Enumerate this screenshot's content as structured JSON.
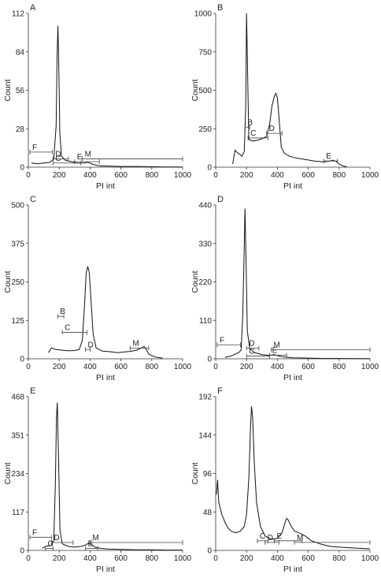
{
  "chart_data": [
    {
      "type": "line",
      "panel": "A",
      "xlabel": "PI int",
      "ylabel": "Count",
      "xlim": [
        0,
        1000
      ],
      "ylim": [
        0,
        112
      ],
      "xticks": [
        "0",
        "200",
        "400",
        "600",
        "800",
        "1000"
      ],
      "yticks": [
        "0",
        "28",
        "56",
        "84",
        "112"
      ],
      "series": [
        {
          "values": [
            [
              20,
              3
            ],
            [
              60,
              2.5
            ],
            [
              100,
              3
            ],
            [
              140,
              3.5
            ],
            [
              165,
              6
            ],
            [
              180,
              30
            ],
            [
              186,
              80
            ],
            [
              192,
              103
            ],
            [
              198,
              70
            ],
            [
              204,
              25
            ],
            [
              215,
              8
            ],
            [
              240,
              5
            ],
            [
              280,
              4
            ],
            [
              320,
              3
            ],
            [
              360,
              3
            ],
            [
              385,
              3.5
            ],
            [
              400,
              3
            ],
            [
              420,
              2
            ],
            [
              460,
              1
            ],
            [
              520,
              0.8
            ],
            [
              600,
              0.5
            ],
            [
              700,
              0.5
            ],
            [
              800,
              0.3
            ],
            [
              900,
              0.2
            ],
            [
              1000,
              0.2
            ]
          ]
        }
      ],
      "gates": [
        {
          "label": "F",
          "x1": 10,
          "x2": 155,
          "y": 11
        },
        {
          "label": "D",
          "x1": 160,
          "x2": 260,
          "y": 6
        },
        {
          "label": "C",
          "x1": 160,
          "x2": 340,
          "y": 3
        },
        {
          "label": "E",
          "x1": 300,
          "x2": 460,
          "y": 4
        },
        {
          "label": "M",
          "x1": 350,
          "x2": 1000,
          "y": 6
        }
      ]
    },
    {
      "type": "line",
      "panel": "B",
      "xlabel": "PI int",
      "ylabel": "Count",
      "xlim": [
        0,
        1000
      ],
      "ylim": [
        0,
        1000
      ],
      "xticks": [
        "0",
        "200",
        "400",
        "600",
        "800",
        "1000"
      ],
      "yticks": [
        "0",
        "250",
        "500",
        "750",
        "1000"
      ],
      "series": [
        {
          "values": [
            [
              110,
              20
            ],
            [
              125,
              110
            ],
            [
              140,
              95
            ],
            [
              155,
              85
            ],
            [
              170,
              70
            ],
            [
              185,
              100
            ],
            [
              195,
              400
            ],
            [
              200,
              1000
            ],
            [
              207,
              600
            ],
            [
              215,
              180
            ],
            [
              240,
              170
            ],
            [
              270,
              175
            ],
            [
              300,
              185
            ],
            [
              330,
              200
            ],
            [
              350,
              280
            ],
            [
              365,
              400
            ],
            [
              380,
              460
            ],
            [
              390,
              480
            ],
            [
              400,
              450
            ],
            [
              412,
              300
            ],
            [
              425,
              130
            ],
            [
              445,
              90
            ],
            [
              480,
              70
            ],
            [
              520,
              60
            ],
            [
              580,
              50
            ],
            [
              640,
              40
            ],
            [
              700,
              35
            ],
            [
              740,
              40
            ],
            [
              760,
              45
            ],
            [
              780,
              38
            ],
            [
              800,
              20
            ],
            [
              830,
              6
            ],
            [
              850,
              2
            ]
          ]
        }
      ],
      "gates": [
        {
          "label": "B",
          "x1": 190,
          "x2": 220,
          "y": 260
        },
        {
          "label": "C",
          "x1": 210,
          "x2": 340,
          "y": 190
        },
        {
          "label": "D",
          "x1": 330,
          "x2": 430,
          "y": 220
        },
        {
          "label": "E",
          "x1": 700,
          "x2": 790,
          "y": 40
        }
      ]
    },
    {
      "type": "line",
      "panel": "C",
      "xlabel": "PI int",
      "ylabel": "Count",
      "xlim": [
        0,
        1000
      ],
      "ylim": [
        0,
        500
      ],
      "xticks": [
        "0",
        "200",
        "400",
        "600",
        "800",
        "1000"
      ],
      "yticks": [
        "0",
        "125",
        "250",
        "375",
        "500"
      ],
      "series": [
        {
          "values": [
            [
              130,
              20
            ],
            [
              150,
              35
            ],
            [
              180,
              30
            ],
            [
              220,
              28
            ],
            [
              260,
              26
            ],
            [
              300,
              27
            ],
            [
              330,
              30
            ],
            [
              350,
              60
            ],
            [
              365,
              180
            ],
            [
              375,
              280
            ],
            [
              385,
              300
            ],
            [
              395,
              280
            ],
            [
              405,
              200
            ],
            [
              420,
              80
            ],
            [
              440,
              35
            ],
            [
              480,
              25
            ],
            [
              530,
              23
            ],
            [
              580,
              20
            ],
            [
              620,
              22
            ],
            [
              660,
              24
            ],
            [
              700,
              28
            ],
            [
              730,
              35
            ],
            [
              750,
              40
            ],
            [
              765,
              30
            ],
            [
              780,
              15
            ],
            [
              820,
              6
            ],
            [
              870,
              2
            ]
          ]
        }
      ],
      "gates": [
        {
          "label": "B",
          "x1": 190,
          "x2": 230,
          "y": 138
        },
        {
          "label": "C",
          "x1": 220,
          "x2": 380,
          "y": 86
        },
        {
          "label": "D",
          "x1": 370,
          "x2": 400,
          "y": 30
        },
        {
          "label": "M",
          "x1": 660,
          "x2": 780,
          "y": 35
        }
      ]
    },
    {
      "type": "line",
      "panel": "D",
      "xlabel": "PI int",
      "ylabel": "Count",
      "xlim": [
        0,
        1000
      ],
      "ylim": [
        0,
        440
      ],
      "xticks": [
        "0",
        "200",
        "400",
        "600",
        "800",
        "1000"
      ],
      "yticks": [
        "0",
        "110",
        "220",
        "330",
        "440"
      ],
      "series": [
        {
          "values": [
            [
              60,
              4
            ],
            [
              100,
              8
            ],
            [
              130,
              14
            ],
            [
              150,
              18
            ],
            [
              165,
              25
            ],
            [
              175,
              120
            ],
            [
              185,
              320
            ],
            [
              190,
              430
            ],
            [
              196,
              300
            ],
            [
              205,
              80
            ],
            [
              220,
              30
            ],
            [
              250,
              18
            ],
            [
              300,
              12
            ],
            [
              350,
              10
            ],
            [
              380,
              12
            ],
            [
              400,
              9
            ],
            [
              440,
              5
            ],
            [
              500,
              3
            ],
            [
              600,
              2
            ],
            [
              700,
              1
            ],
            [
              800,
              1
            ],
            [
              900,
              0.5
            ],
            [
              1000,
              0.5
            ]
          ]
        }
      ],
      "gates": [
        {
          "label": "F",
          "x1": 10,
          "x2": 160,
          "y": 40
        },
        {
          "label": "D",
          "x1": 200,
          "x2": 280,
          "y": 30
        },
        {
          "label": "C",
          "x1": 200,
          "x2": 350,
          "y": 8
        },
        {
          "label": "E",
          "x1": 350,
          "x2": 460,
          "y": 10
        },
        {
          "label": "M",
          "x1": 360,
          "x2": 1000,
          "y": 26
        }
      ]
    },
    {
      "type": "line",
      "panel": "E",
      "xlabel": "PI int",
      "ylabel": "Count",
      "xlim": [
        0,
        1000
      ],
      "ylim": [
        0,
        468
      ],
      "xticks": [
        "0",
        "200",
        "400",
        "600",
        "800",
        "1000"
      ],
      "yticks": [
        "0",
        "117",
        "234",
        "351",
        "468"
      ],
      "series": [
        {
          "values": [
            [
              90,
              6
            ],
            [
              110,
              12
            ],
            [
              130,
              14
            ],
            [
              150,
              15
            ],
            [
              165,
              30
            ],
            [
              175,
              200
            ],
            [
              182,
              400
            ],
            [
              188,
              450
            ],
            [
              195,
              300
            ],
            [
              205,
              60
            ],
            [
              220,
              20
            ],
            [
              260,
              12
            ],
            [
              300,
              10
            ],
            [
              340,
              12
            ],
            [
              370,
              16
            ],
            [
              390,
              22
            ],
            [
              410,
              18
            ],
            [
              430,
              10
            ],
            [
              470,
              6
            ],
            [
              520,
              4
            ],
            [
              600,
              3
            ],
            [
              700,
              2
            ],
            [
              800,
              2
            ],
            [
              900,
              1
            ],
            [
              1000,
              1
            ]
          ]
        }
      ],
      "gates": [
        {
          "label": "F",
          "x1": 10,
          "x2": 150,
          "y": 40
        },
        {
          "label": "C",
          "x1": 110,
          "x2": 160,
          "y": 6
        },
        {
          "label": "D",
          "x1": 150,
          "x2": 290,
          "y": 24
        },
        {
          "label": "E",
          "x1": 370,
          "x2": 450,
          "y": 6
        },
        {
          "label": "M",
          "x1": 400,
          "x2": 1000,
          "y": 24
        }
      ]
    },
    {
      "type": "line",
      "panel": "F",
      "xlabel": "PI int",
      "ylabel": "Count",
      "xlim": [
        0,
        1000
      ],
      "ylim": [
        0,
        192
      ],
      "xticks": [
        "0",
        "200",
        "400",
        "600",
        "800",
        "1000"
      ],
      "yticks": [
        "0",
        "48",
        "96",
        "144",
        "192"
      ],
      "series": [
        {
          "values": [
            [
              5,
              70
            ],
            [
              12,
              88
            ],
            [
              20,
              60
            ],
            [
              40,
              45
            ],
            [
              60,
              35
            ],
            [
              80,
              28
            ],
            [
              100,
              24
            ],
            [
              130,
              22
            ],
            [
              160,
              24
            ],
            [
              185,
              30
            ],
            [
              200,
              45
            ],
            [
              215,
              90
            ],
            [
              225,
              150
            ],
            [
              232,
              180
            ],
            [
              240,
              165
            ],
            [
              250,
              110
            ],
            [
              265,
              60
            ],
            [
              290,
              30
            ],
            [
              320,
              18
            ],
            [
              360,
              14
            ],
            [
              400,
              15
            ],
            [
              430,
              22
            ],
            [
              450,
              35
            ],
            [
              460,
              40
            ],
            [
              470,
              38
            ],
            [
              490,
              30
            ],
            [
              510,
              24
            ],
            [
              540,
              22
            ],
            [
              580,
              18
            ],
            [
              620,
              12
            ],
            [
              680,
              8
            ],
            [
              740,
              5
            ],
            [
              800,
              4
            ],
            [
              900,
              3
            ],
            [
              1000,
              2
            ]
          ]
        }
      ],
      "gates": [
        {
          "label": "C",
          "x1": 270,
          "x2": 340,
          "y": 12
        },
        {
          "label": "D",
          "x1": 320,
          "x2": 410,
          "y": 10
        },
        {
          "label": "E",
          "x1": 380,
          "x2": 560,
          "y": 12
        },
        {
          "label": "M",
          "x1": 510,
          "x2": 1000,
          "y": 10
        }
      ]
    }
  ]
}
